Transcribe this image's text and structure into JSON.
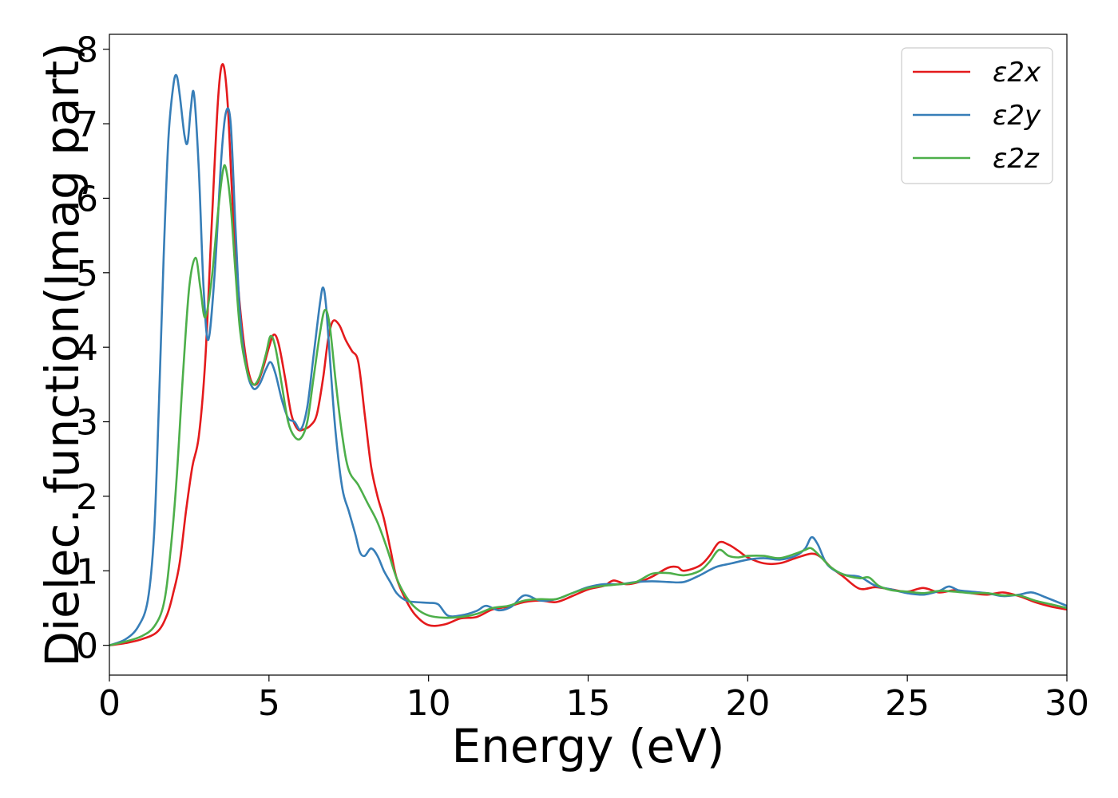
{
  "chart_data": {
    "type": "line",
    "title": "",
    "xlabel": "Energy (eV)",
    "ylabel": "Dielec. function(Imag part)",
    "xlim": [
      0,
      30
    ],
    "ylim": [
      -0.4,
      8.2
    ],
    "xticks": [
      0,
      5,
      10,
      15,
      20,
      25,
      30
    ],
    "yticks": [
      0,
      1,
      2,
      3,
      4,
      5,
      6,
      7,
      8
    ],
    "grid": false,
    "legend_position": "top-right",
    "series": [
      {
        "name": "ε2x",
        "color": "#e41a1c",
        "points": [
          [
            0,
            0
          ],
          [
            0.5,
            0.03
          ],
          [
            1.0,
            0.08
          ],
          [
            1.5,
            0.18
          ],
          [
            1.8,
            0.4
          ],
          [
            2.0,
            0.7
          ],
          [
            2.2,
            1.1
          ],
          [
            2.4,
            1.8
          ],
          [
            2.6,
            2.4
          ],
          [
            2.8,
            2.8
          ],
          [
            3.0,
            3.8
          ],
          [
            3.2,
            5.6
          ],
          [
            3.4,
            7.3
          ],
          [
            3.55,
            7.8
          ],
          [
            3.7,
            7.3
          ],
          [
            3.85,
            6.0
          ],
          [
            4.0,
            5.0
          ],
          [
            4.2,
            4.1
          ],
          [
            4.4,
            3.6
          ],
          [
            4.6,
            3.5
          ],
          [
            4.8,
            3.7
          ],
          [
            5.0,
            4.0
          ],
          [
            5.15,
            4.17
          ],
          [
            5.3,
            4.05
          ],
          [
            5.5,
            3.6
          ],
          [
            5.7,
            3.1
          ],
          [
            5.9,
            2.9
          ],
          [
            6.1,
            2.9
          ],
          [
            6.3,
            2.95
          ],
          [
            6.5,
            3.1
          ],
          [
            6.7,
            3.6
          ],
          [
            6.85,
            4.1
          ],
          [
            7.0,
            4.35
          ],
          [
            7.2,
            4.3
          ],
          [
            7.4,
            4.1
          ],
          [
            7.6,
            3.95
          ],
          [
            7.8,
            3.8
          ],
          [
            8.0,
            3.1
          ],
          [
            8.2,
            2.4
          ],
          [
            8.4,
            2.0
          ],
          [
            8.6,
            1.7
          ],
          [
            8.8,
            1.3
          ],
          [
            9.0,
            0.9
          ],
          [
            9.3,
            0.6
          ],
          [
            9.6,
            0.4
          ],
          [
            10.0,
            0.27
          ],
          [
            10.5,
            0.28
          ],
          [
            11.0,
            0.36
          ],
          [
            11.5,
            0.38
          ],
          [
            12.0,
            0.48
          ],
          [
            12.5,
            0.52
          ],
          [
            13.0,
            0.58
          ],
          [
            13.5,
            0.6
          ],
          [
            14.0,
            0.58
          ],
          [
            14.5,
            0.66
          ],
          [
            15.0,
            0.75
          ],
          [
            15.5,
            0.8
          ],
          [
            15.8,
            0.87
          ],
          [
            16.2,
            0.82
          ],
          [
            16.6,
            0.85
          ],
          [
            17.0,
            0.92
          ],
          [
            17.5,
            1.04
          ],
          [
            17.8,
            1.05
          ],
          [
            18.0,
            1.0
          ],
          [
            18.5,
            1.07
          ],
          [
            18.8,
            1.2
          ],
          [
            19.1,
            1.38
          ],
          [
            19.4,
            1.35
          ],
          [
            19.7,
            1.27
          ],
          [
            20.0,
            1.18
          ],
          [
            20.5,
            1.1
          ],
          [
            21.0,
            1.1
          ],
          [
            21.5,
            1.17
          ],
          [
            22.0,
            1.23
          ],
          [
            22.3,
            1.18
          ],
          [
            22.6,
            1.05
          ],
          [
            23.0,
            0.92
          ],
          [
            23.5,
            0.76
          ],
          [
            24.0,
            0.78
          ],
          [
            24.5,
            0.75
          ],
          [
            25.0,
            0.72
          ],
          [
            25.5,
            0.77
          ],
          [
            26.0,
            0.71
          ],
          [
            26.5,
            0.74
          ],
          [
            27.0,
            0.7
          ],
          [
            27.5,
            0.68
          ],
          [
            28.0,
            0.71
          ],
          [
            28.5,
            0.66
          ],
          [
            29.0,
            0.58
          ],
          [
            29.5,
            0.52
          ],
          [
            30.0,
            0.48
          ]
        ]
      },
      {
        "name": "ε2y",
        "color": "#377eb8",
        "points": [
          [
            0,
            0
          ],
          [
            0.5,
            0.08
          ],
          [
            0.9,
            0.25
          ],
          [
            1.2,
            0.6
          ],
          [
            1.4,
            1.5
          ],
          [
            1.55,
            3.2
          ],
          [
            1.7,
            5.2
          ],
          [
            1.85,
            6.8
          ],
          [
            2.0,
            7.5
          ],
          [
            2.1,
            7.65
          ],
          [
            2.2,
            7.4
          ],
          [
            2.35,
            6.85
          ],
          [
            2.45,
            6.75
          ],
          [
            2.55,
            7.2
          ],
          [
            2.65,
            7.4
          ],
          [
            2.8,
            6.4
          ],
          [
            2.95,
            4.8
          ],
          [
            3.1,
            4.1
          ],
          [
            3.3,
            5.0
          ],
          [
            3.5,
            6.5
          ],
          [
            3.65,
            7.15
          ],
          [
            3.8,
            7.0
          ],
          [
            3.95,
            5.6
          ],
          [
            4.1,
            4.4
          ],
          [
            4.3,
            3.7
          ],
          [
            4.5,
            3.45
          ],
          [
            4.7,
            3.5
          ],
          [
            4.9,
            3.7
          ],
          [
            5.05,
            3.8
          ],
          [
            5.2,
            3.65
          ],
          [
            5.4,
            3.3
          ],
          [
            5.6,
            3.05
          ],
          [
            5.8,
            3.0
          ],
          [
            6.0,
            2.9
          ],
          [
            6.2,
            3.2
          ],
          [
            6.4,
            3.9
          ],
          [
            6.6,
            4.6
          ],
          [
            6.7,
            4.8
          ],
          [
            6.8,
            4.5
          ],
          [
            6.95,
            3.6
          ],
          [
            7.1,
            2.8
          ],
          [
            7.3,
            2.1
          ],
          [
            7.5,
            1.8
          ],
          [
            7.7,
            1.5
          ],
          [
            7.85,
            1.25
          ],
          [
            8.0,
            1.2
          ],
          [
            8.2,
            1.3
          ],
          [
            8.4,
            1.2
          ],
          [
            8.6,
            1.0
          ],
          [
            8.8,
            0.85
          ],
          [
            9.0,
            0.7
          ],
          [
            9.3,
            0.6
          ],
          [
            9.6,
            0.58
          ],
          [
            10.0,
            0.57
          ],
          [
            10.3,
            0.55
          ],
          [
            10.6,
            0.4
          ],
          [
            11.0,
            0.4
          ],
          [
            11.5,
            0.46
          ],
          [
            11.8,
            0.53
          ],
          [
            12.2,
            0.47
          ],
          [
            12.6,
            0.52
          ],
          [
            13.0,
            0.67
          ],
          [
            13.5,
            0.6
          ],
          [
            14.0,
            0.62
          ],
          [
            14.5,
            0.7
          ],
          [
            15.0,
            0.78
          ],
          [
            15.5,
            0.82
          ],
          [
            16.0,
            0.82
          ],
          [
            16.5,
            0.85
          ],
          [
            17.0,
            0.86
          ],
          [
            17.5,
            0.85
          ],
          [
            18.0,
            0.85
          ],
          [
            18.5,
            0.94
          ],
          [
            19.0,
            1.05
          ],
          [
            19.5,
            1.1
          ],
          [
            20.0,
            1.15
          ],
          [
            20.5,
            1.17
          ],
          [
            21.0,
            1.15
          ],
          [
            21.5,
            1.2
          ],
          [
            21.8,
            1.3
          ],
          [
            22.0,
            1.45
          ],
          [
            22.2,
            1.35
          ],
          [
            22.5,
            1.08
          ],
          [
            23.0,
            0.95
          ],
          [
            23.5,
            0.92
          ],
          [
            24.0,
            0.8
          ],
          [
            24.5,
            0.75
          ],
          [
            25.0,
            0.7
          ],
          [
            25.5,
            0.68
          ],
          [
            26.0,
            0.73
          ],
          [
            26.3,
            0.79
          ],
          [
            26.6,
            0.74
          ],
          [
            27.0,
            0.72
          ],
          [
            27.5,
            0.7
          ],
          [
            28.0,
            0.66
          ],
          [
            28.5,
            0.68
          ],
          [
            28.9,
            0.71
          ],
          [
            29.3,
            0.65
          ],
          [
            30.0,
            0.53
          ]
        ]
      },
      {
        "name": "ε2z",
        "color": "#4daf4a",
        "points": [
          [
            0,
            0
          ],
          [
            0.5,
            0.05
          ],
          [
            1.0,
            0.12
          ],
          [
            1.4,
            0.25
          ],
          [
            1.7,
            0.55
          ],
          [
            1.9,
            1.2
          ],
          [
            2.1,
            2.2
          ],
          [
            2.3,
            3.6
          ],
          [
            2.5,
            4.8
          ],
          [
            2.7,
            5.2
          ],
          [
            2.85,
            4.8
          ],
          [
            3.0,
            4.4
          ],
          [
            3.2,
            4.9
          ],
          [
            3.4,
            5.8
          ],
          [
            3.55,
            6.35
          ],
          [
            3.65,
            6.4
          ],
          [
            3.8,
            5.9
          ],
          [
            3.95,
            5.0
          ],
          [
            4.1,
            4.2
          ],
          [
            4.3,
            3.7
          ],
          [
            4.5,
            3.5
          ],
          [
            4.7,
            3.6
          ],
          [
            4.9,
            3.9
          ],
          [
            5.05,
            4.15
          ],
          [
            5.2,
            4.0
          ],
          [
            5.4,
            3.5
          ],
          [
            5.6,
            3.0
          ],
          [
            5.8,
            2.8
          ],
          [
            6.0,
            2.78
          ],
          [
            6.2,
            3.0
          ],
          [
            6.4,
            3.6
          ],
          [
            6.6,
            4.2
          ],
          [
            6.75,
            4.5
          ],
          [
            6.9,
            4.3
          ],
          [
            7.1,
            3.5
          ],
          [
            7.3,
            2.8
          ],
          [
            7.5,
            2.35
          ],
          [
            7.8,
            2.15
          ],
          [
            8.1,
            1.9
          ],
          [
            8.4,
            1.65
          ],
          [
            8.7,
            1.3
          ],
          [
            9.0,
            0.9
          ],
          [
            9.3,
            0.65
          ],
          [
            9.6,
            0.5
          ],
          [
            10.0,
            0.4
          ],
          [
            10.5,
            0.37
          ],
          [
            11.0,
            0.38
          ],
          [
            11.5,
            0.42
          ],
          [
            12.0,
            0.5
          ],
          [
            12.5,
            0.53
          ],
          [
            13.0,
            0.6
          ],
          [
            13.5,
            0.62
          ],
          [
            14.0,
            0.62
          ],
          [
            14.5,
            0.7
          ],
          [
            15.0,
            0.77
          ],
          [
            15.5,
            0.8
          ],
          [
            16.0,
            0.82
          ],
          [
            16.5,
            0.85
          ],
          [
            17.0,
            0.96
          ],
          [
            17.5,
            0.97
          ],
          [
            18.0,
            0.94
          ],
          [
            18.5,
            1.0
          ],
          [
            18.8,
            1.12
          ],
          [
            19.1,
            1.28
          ],
          [
            19.4,
            1.2
          ],
          [
            19.7,
            1.18
          ],
          [
            20.0,
            1.2
          ],
          [
            20.5,
            1.2
          ],
          [
            21.0,
            1.17
          ],
          [
            21.5,
            1.23
          ],
          [
            21.8,
            1.28
          ],
          [
            22.0,
            1.3
          ],
          [
            22.3,
            1.18
          ],
          [
            22.6,
            1.05
          ],
          [
            23.0,
            0.95
          ],
          [
            23.5,
            0.9
          ],
          [
            23.8,
            0.91
          ],
          [
            24.1,
            0.8
          ],
          [
            24.5,
            0.74
          ],
          [
            25.0,
            0.72
          ],
          [
            25.5,
            0.7
          ],
          [
            26.0,
            0.73
          ],
          [
            26.5,
            0.72
          ],
          [
            27.0,
            0.7
          ],
          [
            27.5,
            0.7
          ],
          [
            28.0,
            0.67
          ],
          [
            28.5,
            0.67
          ],
          [
            29.0,
            0.6
          ],
          [
            29.5,
            0.55
          ],
          [
            30.0,
            0.5
          ]
        ]
      }
    ]
  }
}
